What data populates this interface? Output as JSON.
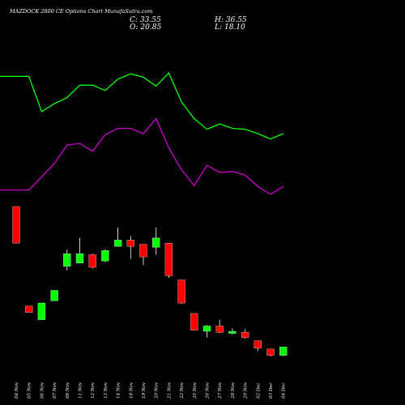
{
  "chart_data": {
    "type": "candlestick",
    "title": "MAZDOCK 2800  CE Options  Chart MunafaSutra.com",
    "ohlc_readout": {
      "close_label": "C:",
      "close": "33.55",
      "open_label": "O:",
      "open": "20.85",
      "high_label": "H:",
      "high": "36.55",
      "low_label": "L:",
      "low": "18.10"
    },
    "dates": [
      "04 Nov",
      "05 Nov",
      "06 Nov",
      "07 Nov",
      "08 Nov",
      "11 Nov",
      "12 Nov",
      "13 Nov",
      "14 Nov",
      "18 Nov",
      "19 Nov",
      "20 Nov",
      "21 Nov",
      "22 Nov",
      "25 Nov",
      "26 Nov",
      "27 Nov",
      "28 Nov",
      "29 Nov",
      "02 Dec",
      "03 Dec",
      "04 Dec"
    ],
    "candles": [
      {
        "open": 156,
        "close": 121,
        "high": 156,
        "low": 121
      },
      {
        "open": 61,
        "close": 55,
        "high": 61,
        "low": 55
      },
      {
        "open": 48,
        "close": 64,
        "high": 64,
        "low": 48
      },
      {
        "open": 66,
        "close": 76,
        "high": 76,
        "low": 66
      },
      {
        "open": 99,
        "close": 111,
        "high": 115,
        "low": 95
      },
      {
        "open": 102,
        "close": 111,
        "high": 126,
        "low": 102
      },
      {
        "open": 110,
        "close": 98,
        "high": 111,
        "low": 97
      },
      {
        "open": 104,
        "close": 114,
        "high": 115,
        "low": 103
      },
      {
        "open": 118,
        "close": 124,
        "high": 136,
        "low": 118
      },
      {
        "open": 124,
        "close": 118,
        "high": 128,
        "low": 106
      },
      {
        "open": 120,
        "close": 108,
        "high": 120,
        "low": 100
      },
      {
        "open": 117,
        "close": 126,
        "high": 136,
        "low": 110
      },
      {
        "open": 121,
        "close": 90,
        "high": 121,
        "low": 88
      },
      {
        "open": 86,
        "close": 64,
        "high": 86,
        "low": 63
      },
      {
        "open": 54,
        "close": 38,
        "high": 54,
        "low": 38
      },
      {
        "open": 37,
        "close": 42,
        "high": 43,
        "low": 31
      },
      {
        "open": 42,
        "close": 36,
        "high": 48,
        "low": 35
      },
      {
        "open": 35,
        "close": 37,
        "high": 40,
        "low": 34
      },
      {
        "open": 36,
        "close": 31,
        "high": 39,
        "low": 30
      },
      {
        "open": 28,
        "close": 21,
        "high": 28,
        "low": 18
      },
      {
        "open": 20,
        "close": 14,
        "high": 20,
        "low": 13
      },
      {
        "open": 14,
        "close": 22,
        "high": 22,
        "low": 13
      }
    ],
    "indicator_lines": [
      {
        "color": "#00ff00",
        "values": [
          401,
          401,
          361,
          370,
          377,
          391,
          391,
          385,
          398,
          404,
          400,
          390,
          405,
          372,
          353,
          341,
          347,
          342,
          341,
          336,
          330,
          336
        ]
      },
      {
        "color": "#cc00cc",
        "values": [
          272,
          272,
          287,
          302,
          323,
          325,
          316,
          335,
          342,
          342,
          336,
          353,
          320,
          295,
          277,
          300,
          292,
          293,
          289,
          276,
          267,
          276
        ]
      }
    ],
    "colors": {
      "up": "#00ff00",
      "down": "#ff0000",
      "background": "#000000",
      "text": "#ffffff",
      "wick": "#ffffff"
    }
  }
}
